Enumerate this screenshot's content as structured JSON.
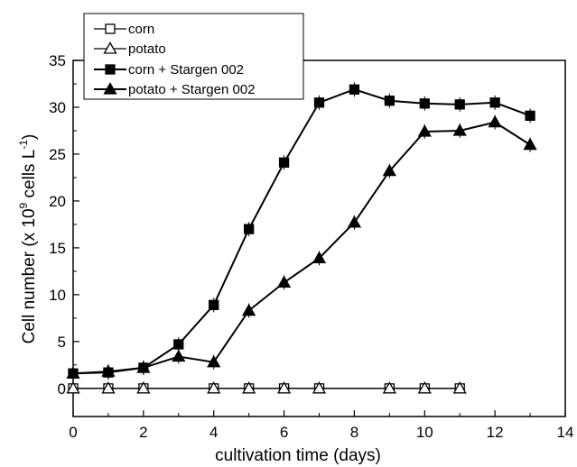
{
  "chart_data": {
    "type": "line",
    "xlabel": "cultivation time (days)",
    "ylabel": {
      "pre": "Cell number (x 10",
      "sup1": "9",
      "mid": " cells L",
      "sup2": "-1",
      "post": ")"
    },
    "xlim": [
      0,
      14
    ],
    "ylim": [
      -3,
      35
    ],
    "xticks": [
      "0",
      "2",
      "4",
      "6",
      "8",
      "10",
      "12",
      "14"
    ],
    "yticks": [
      "0",
      "5",
      "10",
      "15",
      "20",
      "25",
      "30",
      "35"
    ],
    "grid": false,
    "legend_position": "top-left",
    "series": [
      {
        "name": "corn",
        "marker": "square",
        "filled": false,
        "x": [
          0,
          1,
          2,
          4,
          5,
          6,
          7,
          9,
          10,
          11
        ],
        "y": [
          0,
          0,
          0,
          0,
          0,
          0,
          0,
          0,
          0,
          0
        ]
      },
      {
        "name": "potato",
        "marker": "triangle",
        "filled": false,
        "x": [
          0,
          1,
          2,
          4,
          5,
          6,
          7,
          9,
          10,
          11
        ],
        "y": [
          0,
          0,
          0,
          0,
          0,
          0,
          0,
          0,
          0,
          0
        ]
      },
      {
        "name": "corn + Stargen 002",
        "marker": "square",
        "filled": true,
        "x": [
          0,
          1,
          2,
          3,
          4,
          5,
          6,
          7,
          8,
          9,
          10,
          11,
          12,
          13
        ],
        "y": [
          1.6,
          1.7,
          2.2,
          4.7,
          8.9,
          17.0,
          24.1,
          30.5,
          31.9,
          30.7,
          30.4,
          30.3,
          30.5,
          29.1
        ]
      },
      {
        "name": "potato + Stargen 002",
        "marker": "triangle",
        "filled": true,
        "x": [
          0,
          1,
          2,
          3,
          4,
          5,
          6,
          7,
          8,
          9,
          10,
          11,
          12,
          13
        ],
        "y": [
          1.6,
          1.8,
          2.2,
          3.4,
          2.8,
          8.3,
          11.3,
          13.9,
          17.7,
          23.2,
          27.4,
          27.5,
          28.4,
          26.0
        ]
      }
    ]
  }
}
